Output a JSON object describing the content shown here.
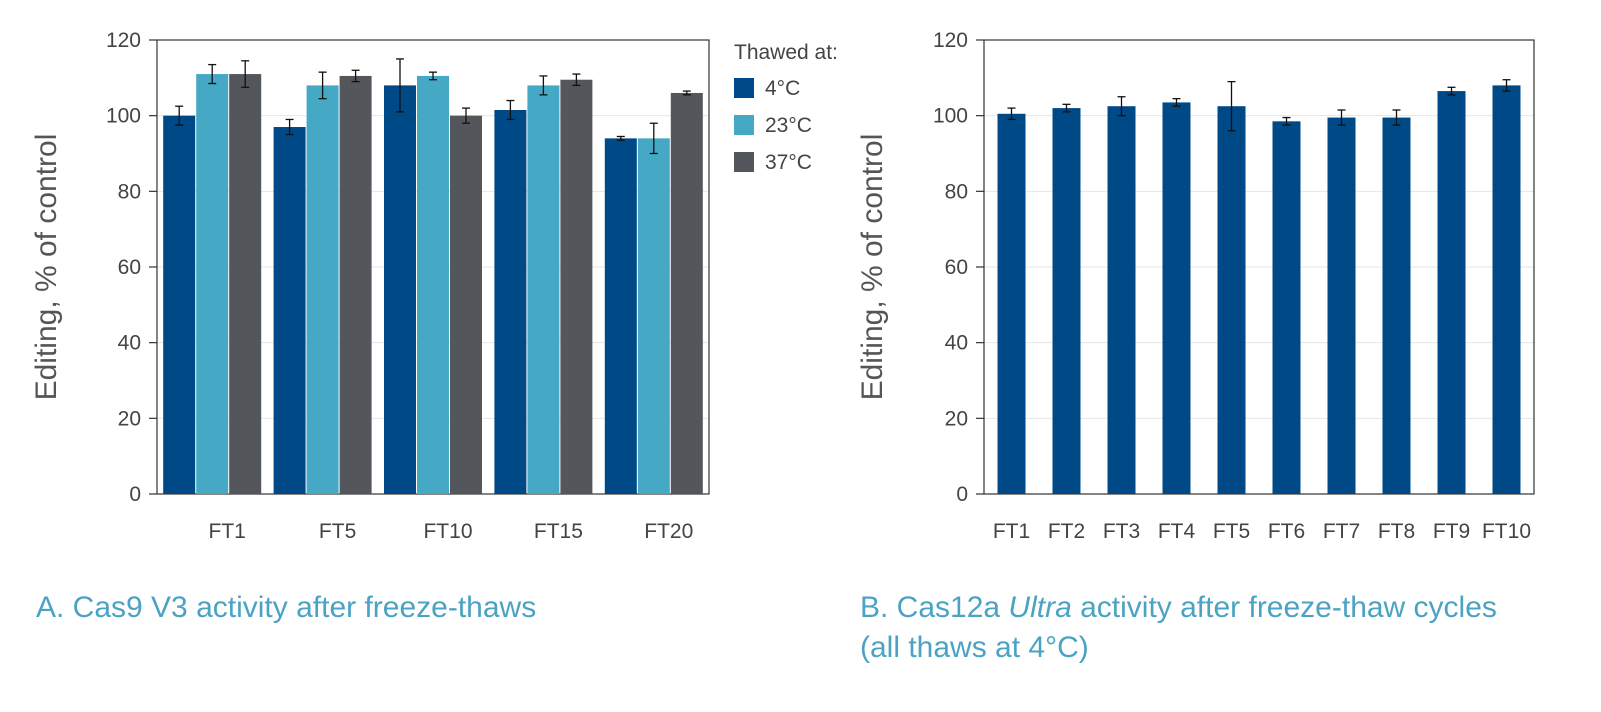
{
  "colors": {
    "blue": "#004987",
    "teal": "#45A9C6",
    "gray": "#53565A",
    "axis": "#333333",
    "grid": "#e6e6e6",
    "caption": "#4BA3C3"
  },
  "captions": {
    "a": "A. Cas9 V3 activity after freeze-thaws",
    "b_pre": "B. Cas12a ",
    "b_em": "Ultra",
    "b_post": " activity after freeze-thaw cycles",
    "b_line2": "(all thaws at 4°C)"
  },
  "chart_data": [
    {
      "id": "A",
      "type": "bar",
      "ylabel": "Editing, % of control",
      "xlabel": "",
      "ylim": [
        0,
        120
      ],
      "yticks": [
        0,
        20,
        40,
        60,
        80,
        100,
        120
      ],
      "grid": true,
      "legend": {
        "title": "Thawed at:",
        "placement": "right"
      },
      "categories": [
        "FT1",
        "FT5",
        "FT10",
        "FT15",
        "FT20"
      ],
      "series": [
        {
          "name": "4°C",
          "color": "#004987",
          "values": [
            100,
            97,
            108,
            101.5,
            94
          ],
          "errors": [
            2.5,
            2,
            7,
            2.5,
            0.5
          ]
        },
        {
          "name": "23°C",
          "color": "#45A9C6",
          "values": [
            111,
            108,
            110.5,
            108,
            94
          ],
          "errors": [
            2.5,
            3.5,
            1,
            2.5,
            4
          ]
        },
        {
          "name": "37°C",
          "color": "#53565A",
          "values": [
            111,
            110.5,
            100,
            109.5,
            106
          ],
          "errors": [
            3.5,
            1.5,
            2,
            1.5,
            0.5
          ]
        }
      ]
    },
    {
      "id": "B",
      "type": "bar",
      "ylabel": "Editing, % of control",
      "xlabel": "",
      "ylim": [
        0,
        120
      ],
      "yticks": [
        0,
        20,
        40,
        60,
        80,
        100,
        120
      ],
      "grid": true,
      "categories": [
        "FT1",
        "FT2",
        "FT3",
        "FT4",
        "FT5",
        "FT6",
        "FT7",
        "FT8",
        "FT9",
        "FT10"
      ],
      "series": [
        {
          "color": "#004987",
          "values": [
            100.5,
            102,
            102.5,
            103.5,
            102.5,
            98.5,
            99.5,
            99.5,
            106.5,
            108
          ],
          "errors": [
            1.5,
            1,
            2.5,
            1,
            6.5,
            1,
            2,
            2,
            1,
            1.5
          ]
        }
      ]
    }
  ]
}
